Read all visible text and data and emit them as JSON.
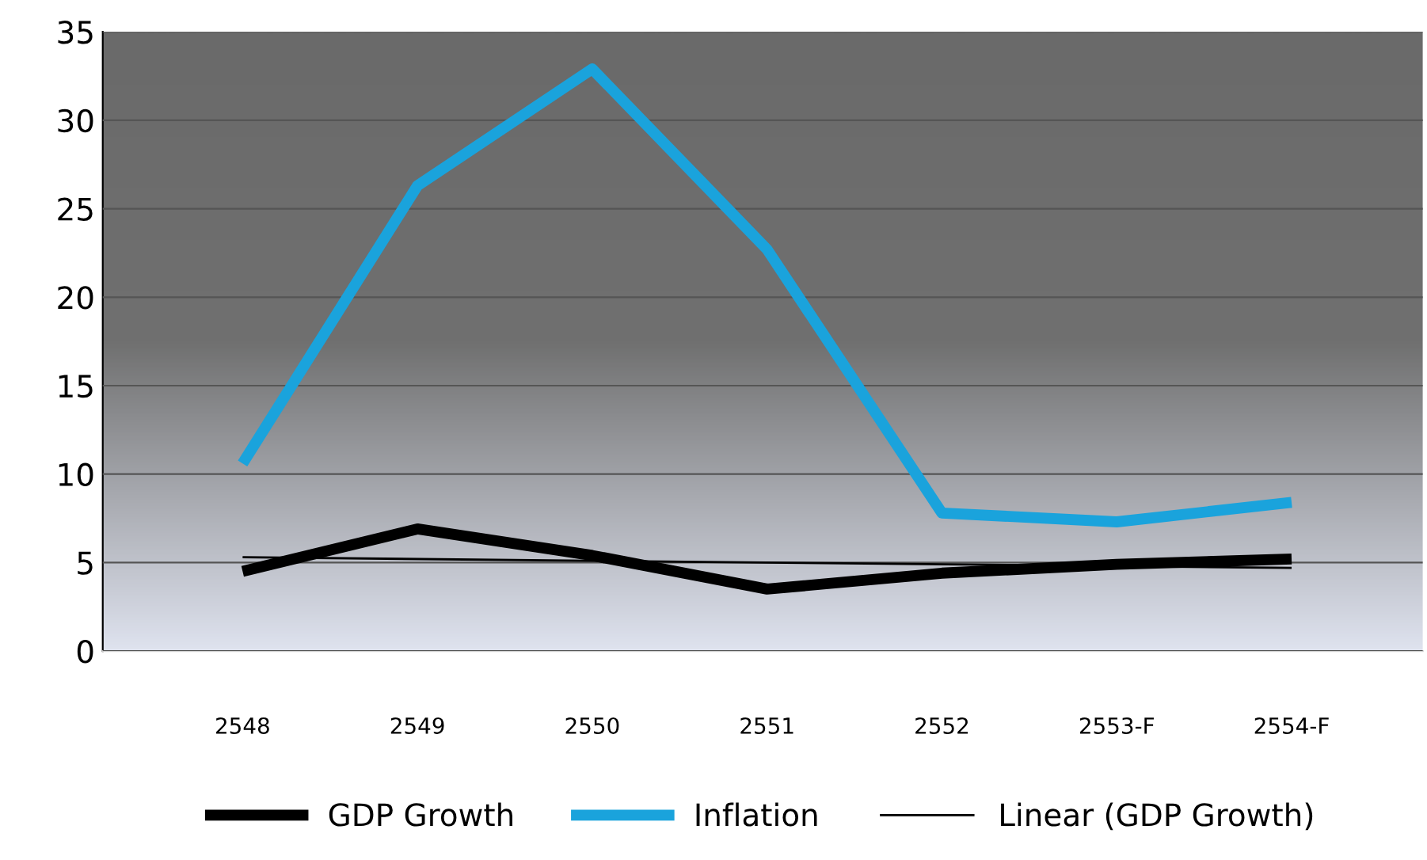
{
  "chart_data": {
    "type": "line",
    "categories": [
      "2548",
      "2549",
      "2550",
      "2551",
      "2552",
      "2553-F",
      "2554-F"
    ],
    "series": [
      {
        "name": "GDP Growth",
        "color": "#000000",
        "values": [
          4.5,
          6.9,
          5.4,
          3.5,
          4.4,
          4.9,
          5.2
        ]
      },
      {
        "name": "Inflation",
        "color": "#1aa3dc",
        "values": [
          10.6,
          26.3,
          32.9,
          22.7,
          7.8,
          7.3,
          8.4
        ]
      },
      {
        "name": "Linear (GDP Growth)",
        "color": "#000000",
        "values": [
          5.3,
          null,
          null,
          null,
          null,
          null,
          4.7
        ]
      }
    ],
    "ylim": [
      0,
      35
    ],
    "yticks": [
      0,
      5,
      10,
      15,
      20,
      25,
      30,
      35
    ],
    "grid": "y",
    "legend": "bottom",
    "marker": "none",
    "line_style": "solid"
  }
}
